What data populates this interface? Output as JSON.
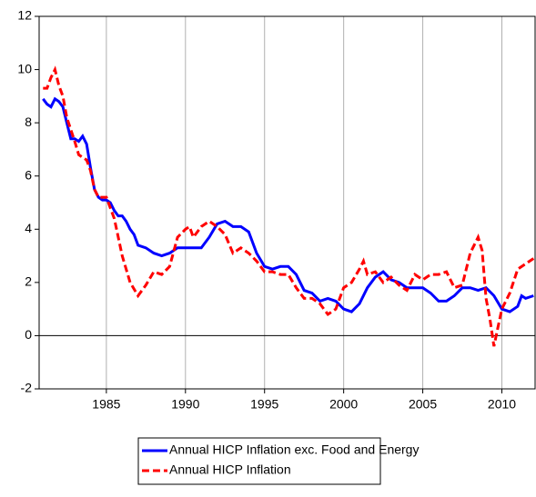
{
  "chart_data": {
    "type": "line",
    "xlim": [
      1980.75,
      2012.1
    ],
    "xticks": [
      1985,
      1990,
      1995,
      2000,
      2005,
      2010
    ],
    "ylim": [
      -2,
      12
    ],
    "yticks": [
      -2,
      0,
      2,
      4,
      6,
      8,
      10,
      12
    ],
    "grid": "x",
    "legend": "bottom",
    "series": [
      {
        "name": "Annual HICP Inflation exc. Food and Energy",
        "color": "#0000ff",
        "dash": "solid",
        "x": [
          1981.0,
          1981.25,
          1981.5,
          1981.75,
          1982.0,
          1982.25,
          1982.5,
          1982.75,
          1983.0,
          1983.25,
          1983.5,
          1983.75,
          1984.0,
          1984.25,
          1984.5,
          1984.75,
          1985.0,
          1985.25,
          1985.5,
          1985.75,
          1986.0,
          1986.25,
          1986.5,
          1986.75,
          1987.0,
          1987.5,
          1988.0,
          1988.5,
          1989.0,
          1989.5,
          1990.0,
          1990.5,
          1991.0,
          1991.5,
          1992.0,
          1992.5,
          1993.0,
          1993.5,
          1994.0,
          1994.5,
          1995.0,
          1995.5,
          1996.0,
          1996.5,
          1997.0,
          1997.5,
          1998.0,
          1998.5,
          1999.0,
          1999.5,
          2000.0,
          2000.5,
          2001.0,
          2001.5,
          2002.0,
          2002.5,
          2003.0,
          2003.5,
          2004.0,
          2004.5,
          2005.0,
          2005.5,
          2006.0,
          2006.5,
          2007.0,
          2007.5,
          2008.0,
          2008.5,
          2009.0,
          2009.5,
          2010.0,
          2010.5,
          2011.0,
          2011.25,
          2011.5,
          2012.0
        ],
        "values": [
          8.9,
          8.7,
          8.6,
          8.9,
          8.8,
          8.6,
          8.0,
          7.4,
          7.4,
          7.3,
          7.5,
          7.2,
          6.3,
          5.5,
          5.2,
          5.1,
          5.1,
          5.0,
          4.7,
          4.5,
          4.5,
          4.3,
          4.0,
          3.8,
          3.4,
          3.3,
          3.1,
          3.0,
          3.1,
          3.3,
          3.3,
          3.3,
          3.3,
          3.7,
          4.2,
          4.3,
          4.1,
          4.1,
          3.9,
          3.1,
          2.6,
          2.5,
          2.6,
          2.6,
          2.3,
          1.7,
          1.6,
          1.3,
          1.4,
          1.3,
          1.0,
          0.9,
          1.2,
          1.8,
          2.2,
          2.4,
          2.1,
          2.0,
          1.8,
          1.8,
          1.8,
          1.6,
          1.3,
          1.3,
          1.5,
          1.8,
          1.8,
          1.7,
          1.8,
          1.5,
          1.0,
          0.9,
          1.1,
          1.5,
          1.4,
          1.5
        ]
      },
      {
        "name": "Annual HICP Inflation",
        "color": "#ff0000",
        "dash": "dashed",
        "x": [
          1981.0,
          1981.25,
          1981.5,
          1981.75,
          1982.0,
          1982.25,
          1982.5,
          1983.0,
          1983.25,
          1983.5,
          1983.75,
          1984.0,
          1984.25,
          1984.5,
          1985.0,
          1985.5,
          1986.0,
          1986.5,
          1987.0,
          1987.5,
          1988.0,
          1988.5,
          1989.0,
          1989.5,
          1990.0,
          1990.25,
          1990.5,
          1991.0,
          1991.5,
          1992.0,
          1992.5,
          1993.0,
          1993.5,
          1994.0,
          1994.5,
          1995.0,
          1995.5,
          1996.0,
          1996.5,
          1997.0,
          1997.5,
          1998.0,
          1998.5,
          1999.0,
          1999.5,
          2000.0,
          2000.5,
          2001.0,
          2001.25,
          2001.5,
          2002.0,
          2002.5,
          2003.0,
          2003.5,
          2004.0,
          2004.5,
          2005.0,
          2005.5,
          2006.0,
          2006.5,
          2007.0,
          2007.5,
          2008.0,
          2008.5,
          2008.75,
          2009.0,
          2009.25,
          2009.5,
          2009.75,
          2010.0,
          2010.5,
          2011.0,
          2011.5,
          2012.0
        ],
        "values": [
          9.3,
          9.3,
          9.7,
          10.0,
          9.4,
          9.0,
          8.2,
          7.3,
          6.8,
          6.7,
          6.6,
          6.2,
          5.5,
          5.2,
          5.2,
          4.4,
          3.0,
          2.0,
          1.5,
          1.9,
          2.4,
          2.3,
          2.6,
          3.7,
          4.0,
          4.1,
          3.7,
          4.1,
          4.3,
          4.1,
          3.8,
          3.1,
          3.3,
          3.1,
          2.8,
          2.4,
          2.4,
          2.3,
          2.3,
          1.8,
          1.4,
          1.4,
          1.2,
          0.8,
          1.0,
          1.8,
          2.0,
          2.5,
          2.8,
          2.3,
          2.4,
          2.0,
          2.2,
          1.9,
          1.7,
          2.3,
          2.1,
          2.3,
          2.3,
          2.4,
          1.8,
          1.9,
          3.1,
          3.7,
          3.2,
          1.4,
          0.6,
          -0.4,
          0.3,
          1.0,
          1.6,
          2.5,
          2.7,
          2.9
        ]
      }
    ]
  }
}
